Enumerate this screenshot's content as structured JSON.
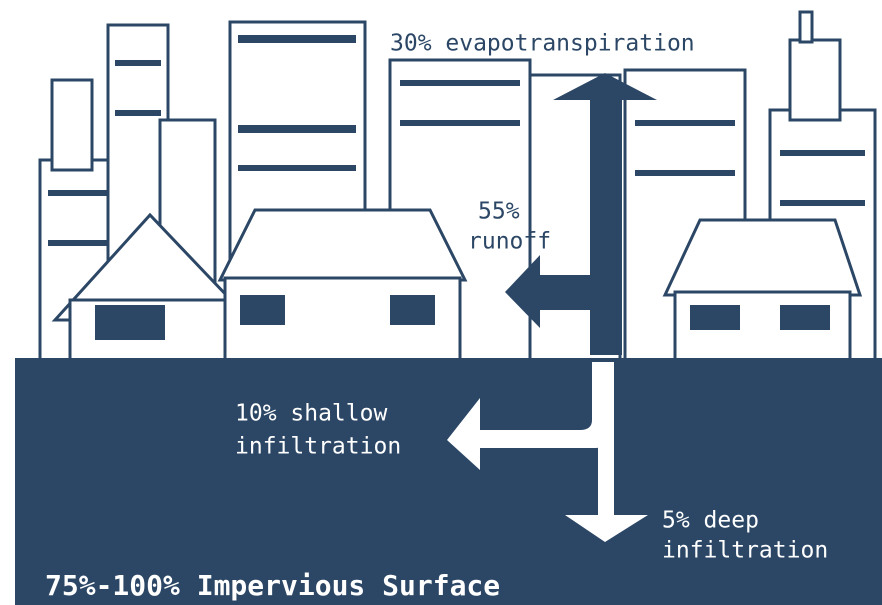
{
  "labels": {
    "evapotranspiration": "30% evapotranspiration",
    "runoff": [
      "55%",
      "runoff"
    ],
    "shallow_infiltration": [
      "10% shallow",
      "infiltration"
    ],
    "deep_infiltration": [
      "5% deep",
      "infiltration"
    ],
    "surface": "75%-100% Impervious Surface"
  }
}
